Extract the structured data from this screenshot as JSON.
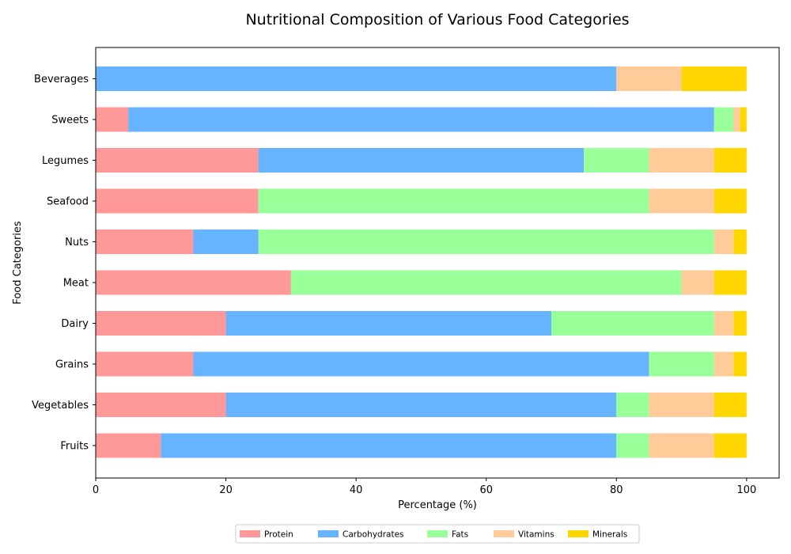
{
  "chart_data": {
    "type": "bar",
    "orientation": "horizontal",
    "stacked": true,
    "title": "Nutritional Composition of Various Food Categories",
    "xlabel": "Percentage (%)",
    "ylabel": "Food Categories",
    "xlim": [
      0,
      105
    ],
    "xticks": [
      0,
      20,
      40,
      60,
      80,
      100
    ],
    "grid": false,
    "legend_position": "bottom-center",
    "categories": [
      "Fruits",
      "Vegetables",
      "Grains",
      "Dairy",
      "Meat",
      "Nuts",
      "Seafood",
      "Legumes",
      "Sweets",
      "Beverages"
    ],
    "series": [
      {
        "name": "Protein",
        "color": "#ff9999",
        "values": [
          10,
          20,
          15,
          20,
          30,
          15,
          25,
          25,
          5,
          0
        ]
      },
      {
        "name": "Carbohydrates",
        "color": "#66b3ff",
        "values": [
          70,
          60,
          70,
          50,
          0,
          10,
          0,
          50,
          90,
          80
        ]
      },
      {
        "name": "Fats",
        "color": "#99ff99",
        "values": [
          5,
          5,
          10,
          25,
          60,
          70,
          60,
          10,
          3,
          0
        ]
      },
      {
        "name": "Vitamins",
        "color": "#ffcc99",
        "values": [
          10,
          10,
          3,
          3,
          5,
          3,
          10,
          10,
          1,
          10
        ]
      },
      {
        "name": "Minerals",
        "color": "#ffd700",
        "values": [
          5,
          5,
          2,
          2,
          5,
          2,
          5,
          5,
          1,
          10
        ]
      }
    ]
  }
}
